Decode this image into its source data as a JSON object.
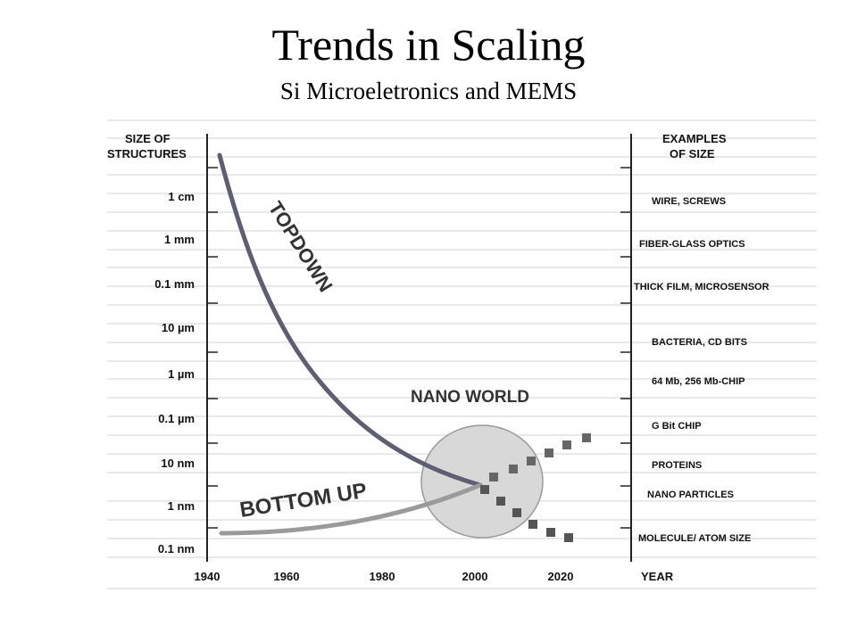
{
  "header": {
    "title": "Trends in Scaling",
    "subtitle": "Si Microeletronics and MEMS"
  },
  "diagram": {
    "left_axis_title": [
      "SIZE OF",
      "STRUCTURES"
    ],
    "right_axis_title": [
      "EXAMPLES",
      "OF SIZE"
    ],
    "size_labels": [
      "1 cm",
      "1 mm",
      "0.1 mm",
      "10 µm",
      "1 µm",
      "0.1 µm",
      "10 nm",
      "1 nm",
      "0.1 nm"
    ],
    "examples": [
      "WIRE, SCREWS",
      "FIBER-GLASS OPTICS",
      "THICK FILM, MICROSENSOR",
      "BACTERIA, CD BITS",
      "64 Mb, 256 Mb-CHIP",
      "G Bit CHIP",
      "PROTEINS",
      "NANO PARTICLES",
      "MOLECULE/ ATOM SIZE"
    ],
    "years": [
      "1940",
      "1960",
      "1980",
      "2000",
      "2020"
    ],
    "year_label": "YEAR",
    "labels": {
      "topdown": "TOPDOWN",
      "bottom_up": "BOTTOM UP",
      "nano_world": "NANO WORLD"
    },
    "colors": {
      "topdown_curve": "#5e5e72",
      "bottom_up_curve": "#9a9a9a",
      "nano_circle_fill": "#d8d8d8",
      "dotted_projection": "#666666"
    }
  }
}
